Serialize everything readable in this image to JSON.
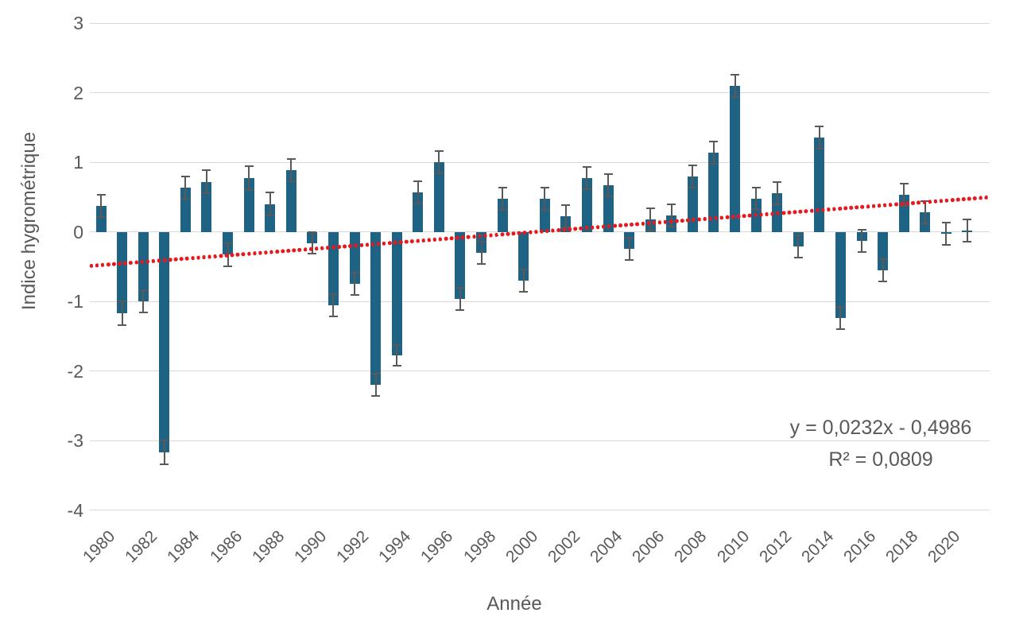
{
  "chart_data": {
    "type": "bar",
    "title": "",
    "xlabel": "Année",
    "ylabel": "Indice hygrométrique",
    "ylim": [
      -4,
      3
    ],
    "yticks": [
      3,
      2,
      1,
      0,
      -1,
      -2,
      -3,
      -4
    ],
    "xtick_labels": [
      1980,
      1982,
      1984,
      1986,
      1988,
      1990,
      1992,
      1994,
      1996,
      1998,
      2000,
      2002,
      2004,
      2006,
      2008,
      2010,
      2012,
      2014,
      2016,
      2018,
      2020
    ],
    "categories": [
      1980,
      1981,
      1982,
      1983,
      1984,
      1985,
      1986,
      1987,
      1988,
      1989,
      1990,
      1991,
      1992,
      1993,
      1994,
      1995,
      1996,
      1997,
      1998,
      1999,
      2000,
      2001,
      2002,
      2003,
      2004,
      2005,
      2006,
      2007,
      2008,
      2009,
      2010,
      2011,
      2012,
      2013,
      2014,
      2015,
      2016,
      2017,
      2018,
      2019,
      2020,
      2021
    ],
    "values": [
      0.37,
      -1.17,
      -1.0,
      -3.17,
      0.64,
      0.72,
      -0.33,
      0.77,
      0.4,
      0.89,
      -0.16,
      -1.06,
      -0.75,
      -2.2,
      -1.78,
      0.57,
      1.0,
      -0.97,
      -0.3,
      0.48,
      -0.7,
      0.47,
      0.22,
      0.77,
      0.67,
      -0.25,
      0.18,
      0.23,
      0.79,
      1.14,
      2.1,
      0.48,
      0.56,
      -0.21,
      1.36,
      -1.24,
      -0.13,
      -0.55,
      0.53,
      0.28,
      -0.03,
      0.02
    ],
    "errors": [
      0.16,
      0.17,
      0.16,
      0.17,
      0.16,
      0.17,
      0.17,
      0.17,
      0.17,
      0.16,
      0.15,
      0.16,
      0.16,
      0.16,
      0.15,
      0.16,
      0.16,
      0.16,
      0.16,
      0.16,
      0.16,
      0.16,
      0.16,
      0.16,
      0.16,
      0.16,
      0.16,
      0.16,
      0.16,
      0.16,
      0.16,
      0.16,
      0.16,
      0.16,
      0.16,
      0.16,
      0.16,
      0.16,
      0.16,
      0.16,
      0.16,
      0.16
    ],
    "grid": "horizontal-only",
    "legend_position": "none",
    "bar_color": "#1f6384",
    "error_bar_color": "#595959",
    "gridline_color": "#d9d9d9",
    "text_color": "#595959",
    "trendline": {
      "equation": "y = 0,0232x - 0,4986",
      "r_squared": "R² = 0,0809",
      "slope": 0.0232,
      "intercept": -0.4986,
      "dot_color": "#e8191d",
      "dash_color": "#24477f"
    }
  }
}
